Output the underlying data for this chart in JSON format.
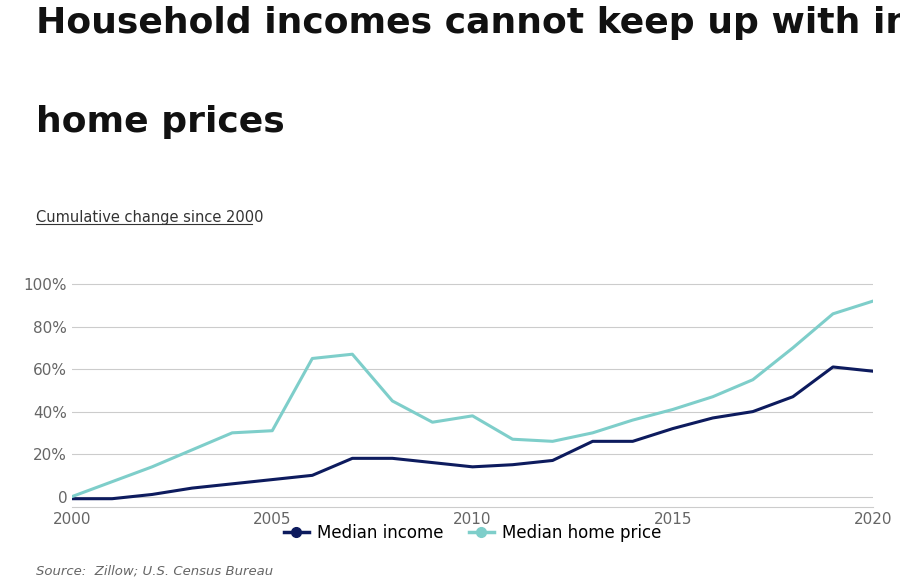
{
  "title_line1": "Household incomes cannot keep up with increasing",
  "title_line2": "home prices",
  "subtitle": "Cumulative change since 2000",
  "source": "Source:  Zillow; U.S. Census Bureau",
  "background_color": "#ffffff",
  "median_income": {
    "years": [
      2000,
      2001,
      2002,
      2003,
      2004,
      2005,
      2006,
      2007,
      2008,
      2009,
      2010,
      2011,
      2012,
      2013,
      2014,
      2015,
      2016,
      2017,
      2018,
      2019,
      2020
    ],
    "values": [
      -1,
      -1,
      1,
      4,
      6,
      8,
      10,
      18,
      18,
      16,
      14,
      15,
      17,
      26,
      26,
      32,
      37,
      40,
      47,
      61,
      59
    ],
    "color": "#0d1b5e",
    "label": "Median income",
    "linewidth": 2.2
  },
  "median_home_price": {
    "years": [
      2000,
      2001,
      2002,
      2003,
      2004,
      2005,
      2006,
      2007,
      2008,
      2009,
      2010,
      2011,
      2012,
      2013,
      2014,
      2015,
      2016,
      2017,
      2018,
      2019,
      2020
    ],
    "values": [
      0,
      7,
      14,
      22,
      30,
      31,
      65,
      67,
      45,
      35,
      38,
      27,
      26,
      30,
      36,
      41,
      47,
      55,
      70,
      86,
      92
    ],
    "color": "#7ececa",
    "label": "Median home price",
    "linewidth": 2.2
  },
  "xlim": [
    2000,
    2020
  ],
  "ylim": [
    -5,
    102
  ],
  "yticks": [
    0,
    20,
    40,
    60,
    80,
    100
  ],
  "ytick_labels": [
    "0",
    "20%",
    "40%",
    "60%",
    "80%",
    "100%"
  ],
  "xticks": [
    2000,
    2005,
    2010,
    2015,
    2020
  ],
  "title_fontsize": 26,
  "subtitle_fontsize": 10.5,
  "tick_fontsize": 11,
  "legend_fontsize": 12,
  "source_fontsize": 9.5
}
